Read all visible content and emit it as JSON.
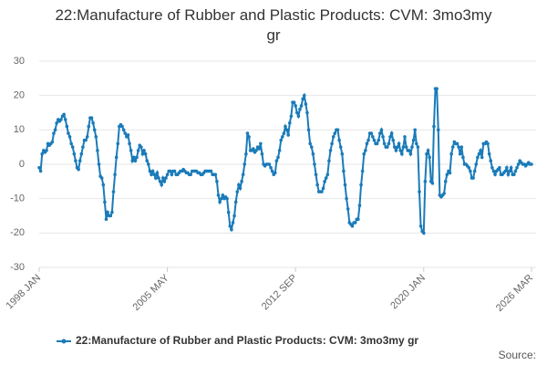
{
  "chart_data": {
    "type": "line",
    "title": "22:Manufacture of Rubber and Plastic Products: CVM: 3mo3my gr",
    "source_label": "Source:",
    "legend": "bottom",
    "grid": true,
    "ylim": [
      -30,
      30
    ],
    "yticks": [
      -30,
      -20,
      -10,
      0,
      10,
      20,
      30
    ],
    "categories": [
      "1998 JAN",
      null,
      null,
      null,
      null,
      null,
      null,
      null,
      null,
      null,
      null,
      null,
      null,
      null,
      null,
      null,
      null,
      null,
      null,
      null,
      null,
      null,
      null,
      null,
      null,
      null,
      null,
      null,
      null,
      null,
      null,
      null,
      null,
      null,
      null,
      null,
      null,
      null,
      null,
      null,
      null,
      null,
      null,
      null,
      null,
      null,
      null,
      null,
      null,
      null,
      null,
      null,
      null,
      null,
      null,
      null,
      null,
      null,
      null,
      null,
      null,
      null,
      null,
      null,
      null,
      null,
      null,
      null,
      null,
      null,
      null,
      null,
      null,
      null,
      null,
      null,
      null,
      null,
      null,
      null,
      null,
      null,
      null,
      null,
      null,
      null,
      null,
      null,
      "2005 MAY",
      null,
      null,
      null,
      null,
      null,
      null,
      null,
      null,
      null,
      null,
      null,
      null,
      null,
      null,
      null,
      null,
      null,
      null,
      null,
      null,
      null,
      null,
      null,
      null,
      null,
      null,
      null,
      null,
      null,
      null,
      null,
      null,
      null,
      null,
      null,
      null,
      null,
      null,
      null,
      null,
      null,
      null,
      null,
      null,
      null,
      null,
      null,
      null,
      null,
      null,
      null,
      null,
      null,
      null,
      null,
      null,
      null,
      null,
      null,
      null,
      null,
      null,
      null,
      null,
      null,
      null,
      null,
      null,
      null,
      null,
      null,
      null,
      null,
      null,
      null,
      null,
      null,
      null,
      null,
      null,
      null,
      null,
      null,
      null,
      null,
      null,
      null,
      "2012 SEP",
      null,
      null,
      null,
      null,
      null,
      null,
      null,
      null,
      null,
      null,
      null,
      null,
      null,
      null,
      null,
      null,
      null,
      null,
      null,
      null,
      null,
      null,
      null,
      null,
      null,
      null,
      null,
      null,
      null,
      null,
      null,
      null,
      null,
      null,
      null,
      null,
      null,
      null,
      null,
      null,
      null,
      null,
      null,
      null,
      null,
      null,
      null,
      null,
      null,
      null,
      null,
      null,
      null,
      null,
      null,
      null,
      null,
      null,
      null,
      null,
      null,
      null,
      null,
      null,
      null,
      null,
      null,
      null,
      null,
      null,
      null,
      null,
      null,
      null,
      null,
      null,
      null,
      null,
      null,
      null,
      null,
      null,
      null,
      null,
      null,
      null,
      null,
      "2020 JAN",
      null,
      null,
      null,
      null,
      null,
      null,
      null,
      null,
      null,
      null,
      null,
      null,
      null,
      null,
      null,
      null,
      null,
      null,
      null,
      null,
      null,
      null,
      null,
      null,
      null,
      null,
      null,
      null,
      null,
      null,
      null,
      null,
      null,
      null,
      null,
      null,
      null,
      null,
      null,
      null,
      null,
      null,
      null,
      null,
      null,
      null,
      null,
      null,
      null,
      null,
      null,
      null,
      null,
      null,
      null,
      null,
      null,
      null,
      null,
      null,
      null,
      null,
      null,
      null,
      null,
      null,
      null,
      null,
      null,
      null,
      null,
      null,
      null,
      "2026 MAR"
    ],
    "series": [
      {
        "name": "22:Manufacture of Rubber and Plastic Products: CVM: 3mo3my gr",
        "color": "#1a7bb9",
        "values": [
          -1,
          -2,
          3,
          4,
          3.5,
          4,
          6,
          5.5,
          6,
          6.5,
          9,
          10,
          12,
          13,
          12.5,
          13,
          14,
          14.5,
          13,
          11,
          9,
          8,
          6,
          5,
          3,
          1,
          -1,
          -1.5,
          1,
          3,
          5,
          7,
          7,
          8,
          11,
          13.5,
          13.5,
          12,
          10,
          8,
          4,
          0,
          -3.5,
          -4,
          -6,
          -11,
          -16,
          -14,
          -15,
          -15,
          -14,
          -8,
          -3,
          2,
          6,
          11,
          11.5,
          11,
          10,
          9,
          8,
          8.5,
          6,
          4,
          1,
          2,
          1,
          2,
          4,
          5.5,
          5,
          3,
          4,
          3,
          1,
          0,
          -2,
          -3,
          -2,
          -3,
          -4,
          -2.5,
          -4,
          -5,
          -6,
          -4,
          -5,
          -4,
          -3,
          -2,
          -2,
          -3,
          -2,
          -2,
          -3,
          -3,
          -2.5,
          -2,
          -2,
          -1.5,
          -2,
          -2.5,
          -2.5,
          -3,
          -3,
          -2,
          -2,
          -2,
          -2,
          -2.5,
          -2.5,
          -3,
          -3,
          -2.5,
          -2,
          -2,
          -2,
          -2,
          -2,
          -3,
          -3,
          -3,
          -5,
          -9,
          -11,
          -10,
          -9,
          -10,
          -9.5,
          -10,
          -14,
          -18,
          -19,
          -17,
          -15,
          -11,
          -8,
          -6,
          -7,
          -5,
          -3,
          0,
          3,
          9,
          8,
          4,
          4,
          4.5,
          3.5,
          4,
          5,
          4.5,
          6,
          3,
          0,
          -0.5,
          0,
          0,
          0,
          -1,
          -2,
          -3,
          -2.5,
          1,
          2,
          4,
          7,
          8,
          9,
          11,
          10,
          8.5,
          12,
          14,
          18,
          18,
          17,
          15,
          14,
          16,
          17,
          19,
          20,
          17.5,
          15,
          10,
          6,
          5,
          3,
          0,
          -3,
          -6,
          -8,
          -8,
          -8,
          -7,
          -5,
          -4,
          -3,
          1,
          4,
          6,
          8,
          9,
          10,
          10,
          7,
          5,
          3,
          -2,
          -6,
          -10,
          -13,
          -17,
          -17.5,
          -18,
          -17,
          -17,
          -16,
          -16,
          -12,
          -6,
          -2,
          3,
          4,
          6,
          7,
          9,
          9,
          8,
          7,
          6,
          6,
          7,
          9,
          10,
          8,
          6,
          5,
          5,
          6,
          8,
          9,
          7,
          5,
          4,
          5,
          6,
          4,
          3,
          5,
          8,
          5,
          4,
          4,
          3,
          5,
          7,
          10,
          6,
          5,
          -8,
          -18,
          -19.5,
          -20,
          -5,
          3,
          4,
          2,
          -5,
          -5.5,
          11,
          22,
          22,
          10,
          -9,
          -9.5,
          -9,
          -8.5,
          -5,
          -3,
          -2,
          -2.5,
          3,
          5,
          6.5,
          6,
          6,
          5,
          3,
          5,
          2,
          0,
          0,
          -0.5,
          -1,
          -2,
          -4,
          -4,
          -2,
          0,
          2,
          3,
          4,
          2,
          6,
          6,
          6.5,
          6,
          3,
          1,
          -1,
          -2,
          -3,
          -2,
          -1.5,
          -1,
          -3,
          -3,
          -2.5,
          -2,
          -1,
          -3,
          -2,
          -1,
          -3,
          -3,
          -2,
          -1,
          0,
          1,
          0.5,
          0,
          0,
          -0.5,
          0,
          0.5,
          0,
          0
        ]
      }
    ]
  }
}
